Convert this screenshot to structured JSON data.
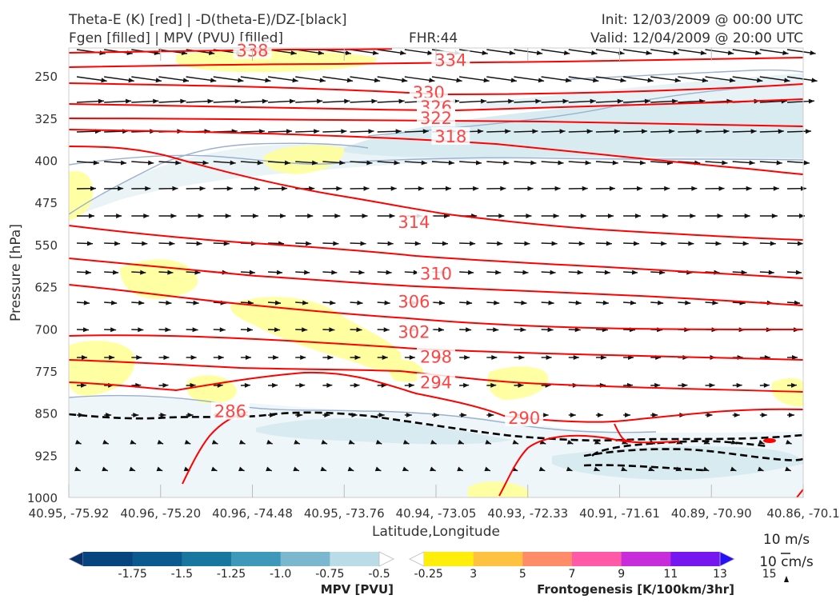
{
  "header": {
    "title_left_1": "Theta-E (K) [red] | -D(theta-E)/DZ-[black]",
    "title_left_2": "Fgen [filled] | MPV (PVU) [filled]",
    "fhr": "FHR:44",
    "init": "Init: 12/03/2009 @ 00:00 UTC",
    "valid": "Valid: 12/04/2009 @ 20:00 UTC"
  },
  "chart_data": {
    "type": "cross-section",
    "ylabel": "Pressure [hPa]",
    "xlabel": "Latitude,Longitude",
    "y_ticks": [
      "250",
      "325",
      "400",
      "475",
      "550",
      "625",
      "700",
      "775",
      "850",
      "925",
      "1000"
    ],
    "y_values": [
      250,
      325,
      400,
      475,
      550,
      625,
      700,
      775,
      850,
      925,
      1000
    ],
    "ylim": [
      1000,
      200
    ],
    "x_ticks": [
      "40.95, -75.92",
      "40.96, -75.20",
      "40.96, -74.48",
      "40.95, -73.76",
      "40.94, -73.05",
      "40.93, -72.33",
      "40.91, -71.61",
      "40.89, -70.90",
      "40.86, -70.1"
    ],
    "theta_e_labels": [
      {
        "label": "338",
        "x": 0.25,
        "p": 205
      },
      {
        "label": "334",
        "x": 0.52,
        "p": 222
      },
      {
        "label": "330",
        "x": 0.49,
        "p": 280
      },
      {
        "label": "326",
        "x": 0.5,
        "p": 305
      },
      {
        "label": "322",
        "x": 0.5,
        "p": 325
      },
      {
        "label": "318",
        "x": 0.52,
        "p": 358
      },
      {
        "label": "314",
        "x": 0.47,
        "p": 510
      },
      {
        "label": "310",
        "x": 0.5,
        "p": 602
      },
      {
        "label": "306",
        "x": 0.47,
        "p": 652
      },
      {
        "label": "302",
        "x": 0.47,
        "p": 706
      },
      {
        "label": "298",
        "x": 0.5,
        "p": 750
      },
      {
        "label": "294",
        "x": 0.5,
        "p": 796
      },
      {
        "label": "290",
        "x": 0.62,
        "p": 859
      },
      {
        "label": "286",
        "x": 0.22,
        "p": 847
      }
    ],
    "theta_e_color": "#ff0000",
    "mpv_colorbar": {
      "label": "MPV [PVU]",
      "ticks": [
        "-1.75",
        "-1.5",
        "-1.25",
        "-1.0",
        "-0.75",
        "-0.5",
        "-0.25"
      ],
      "colors": [
        "#08306b",
        "#08457e",
        "#0b5a8f",
        "#18779f",
        "#3d98ba",
        "#7bb8cf",
        "#b9dce6",
        "#ffffff"
      ]
    },
    "fgen_colorbar": {
      "label": "Frontogenesis [K/100km/3hr]",
      "ticks": [
        "3",
        "5",
        "7",
        "9",
        "11",
        "13",
        "15"
      ],
      "colors": [
        "#ffffff",
        "#ffee0a",
        "#ffc240",
        "#ff8c69",
        "#ff5aa8",
        "#c82ddc",
        "#7717f0",
        "#2810f5"
      ]
    },
    "vector_key": {
      "line1": "10 m/s",
      "line2": "10 cm/s"
    },
    "colors": {
      "mpv_light": "#dcedf2",
      "fgen_light": "#ffff99",
      "contour_black": "#000000"
    }
  }
}
